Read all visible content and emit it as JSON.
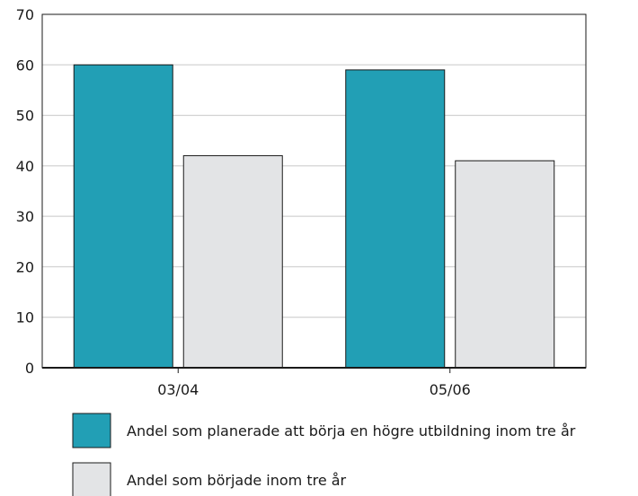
{
  "chart_data": {
    "type": "bar",
    "categories": [
      "03/04",
      "05/06"
    ],
    "series": [
      {
        "name": "Andel som planerade att börja en högre utbildning inom tre år",
        "values": [
          60,
          59
        ],
        "color": "#229fb5"
      },
      {
        "name": "Andel som började inom tre år",
        "values": [
          42,
          41
        ],
        "color": "#e3e4e6"
      }
    ],
    "ylim": [
      0,
      70
    ],
    "yticks": [
      0,
      10,
      20,
      30,
      40,
      50,
      60,
      70
    ],
    "grid": true,
    "legend_position": "bottom",
    "title": "",
    "xlabel": "",
    "ylabel": ""
  }
}
